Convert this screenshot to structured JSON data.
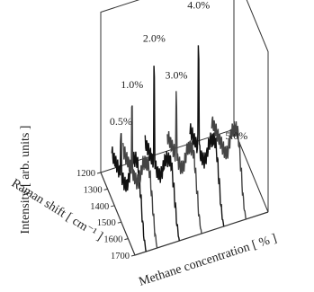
{
  "chart_data": {
    "type": "line",
    "title": "",
    "ylabel": "Intensity [ arb. units ]",
    "xlabel": "Raman shift [ cm⁻¹ ]",
    "zlabel": "Methane concentration [ % ]",
    "x_ticks": [
      "1200",
      "1300",
      "1400",
      "1500",
      "1600",
      "1700"
    ],
    "x_range": [
      1200,
      1700
    ],
    "peak_position": 1332,
    "series": [
      {
        "name": "0.5%",
        "concentration": 0.5,
        "peak_height": 0.34,
        "bands": [
          [
            1500,
            0.24
          ],
          [
            1580,
            0.3
          ]
        ]
      },
      {
        "name": "1.0%",
        "concentration": 1.0,
        "peak_height": 0.55,
        "bands": [
          [
            1500,
            0.2
          ],
          [
            1580,
            0.26
          ]
        ]
      },
      {
        "name": "2.0%",
        "concentration": 2.0,
        "peak_height": 0.8,
        "bands": [
          [
            1500,
            0.18
          ],
          [
            1580,
            0.24
          ]
        ]
      },
      {
        "name": "3.0%",
        "concentration": 3.0,
        "peak_height": 0.52,
        "bands": [
          [
            1500,
            0.2
          ],
          [
            1580,
            0.27
          ]
        ]
      },
      {
        "name": "4.0%",
        "concentration": 4.0,
        "peak_height": 0.92,
        "bands": [
          [
            1500,
            0.2
          ],
          [
            1580,
            0.28
          ]
        ]
      },
      {
        "name": "5.0%",
        "concentration": 5.0,
        "peak_height": 0.0,
        "bands": [
          [
            1500,
            0.22
          ],
          [
            1580,
            0.3
          ]
        ]
      }
    ],
    "grid": false,
    "legend": "none"
  }
}
